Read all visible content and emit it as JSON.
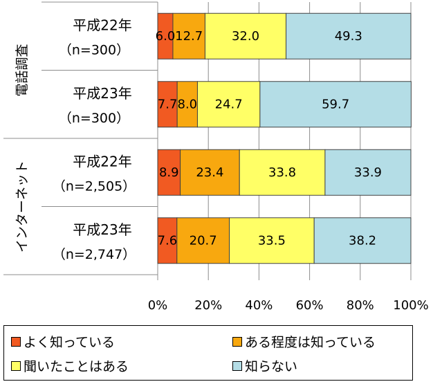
{
  "chart_data": {
    "type": "bar",
    "orientation": "horizontal",
    "stacked": true,
    "xlim": [
      0,
      100
    ],
    "x_ticks": [
      "0%",
      "20%",
      "40%",
      "60%",
      "80%",
      "100%"
    ],
    "groups": [
      {
        "label": "電話調査",
        "rows": [
          0,
          1
        ]
      },
      {
        "label": "インターネット",
        "rows": [
          2,
          3
        ]
      }
    ],
    "categories": [
      {
        "year": "平成22年",
        "n": "（n=300）"
      },
      {
        "year": "平成23年",
        "n": "（n=300）"
      },
      {
        "year": "平成22年",
        "n": "（n=2,505）"
      },
      {
        "year": "平成23年",
        "n": "（n=2,747）"
      }
    ],
    "series": [
      {
        "name": "よく知っている",
        "color": "#f15a22",
        "values": [
          6.0,
          7.7,
          8.9,
          7.6
        ],
        "labels": [
          "6.0",
          "7.7",
          "8.9",
          "7.6"
        ]
      },
      {
        "name": "ある程度は知っている",
        "color": "#f8a80f",
        "values": [
          12.7,
          8.0,
          23.4,
          20.7
        ],
        "labels": [
          "12.7",
          "8.0",
          "23.4",
          "20.7"
        ]
      },
      {
        "name": "聞いたことはある",
        "color": "#ffff66",
        "values": [
          32.0,
          24.7,
          33.8,
          33.5
        ],
        "labels": [
          "32.0",
          "24.7",
          "33.8",
          "33.5"
        ]
      },
      {
        "name": "知らない",
        "color": "#b4dde6",
        "values": [
          49.3,
          59.7,
          33.9,
          38.2
        ],
        "labels": [
          "49.3",
          "59.7",
          "33.9",
          "38.2"
        ]
      }
    ],
    "grid": true,
    "legend_position": "bottom"
  }
}
